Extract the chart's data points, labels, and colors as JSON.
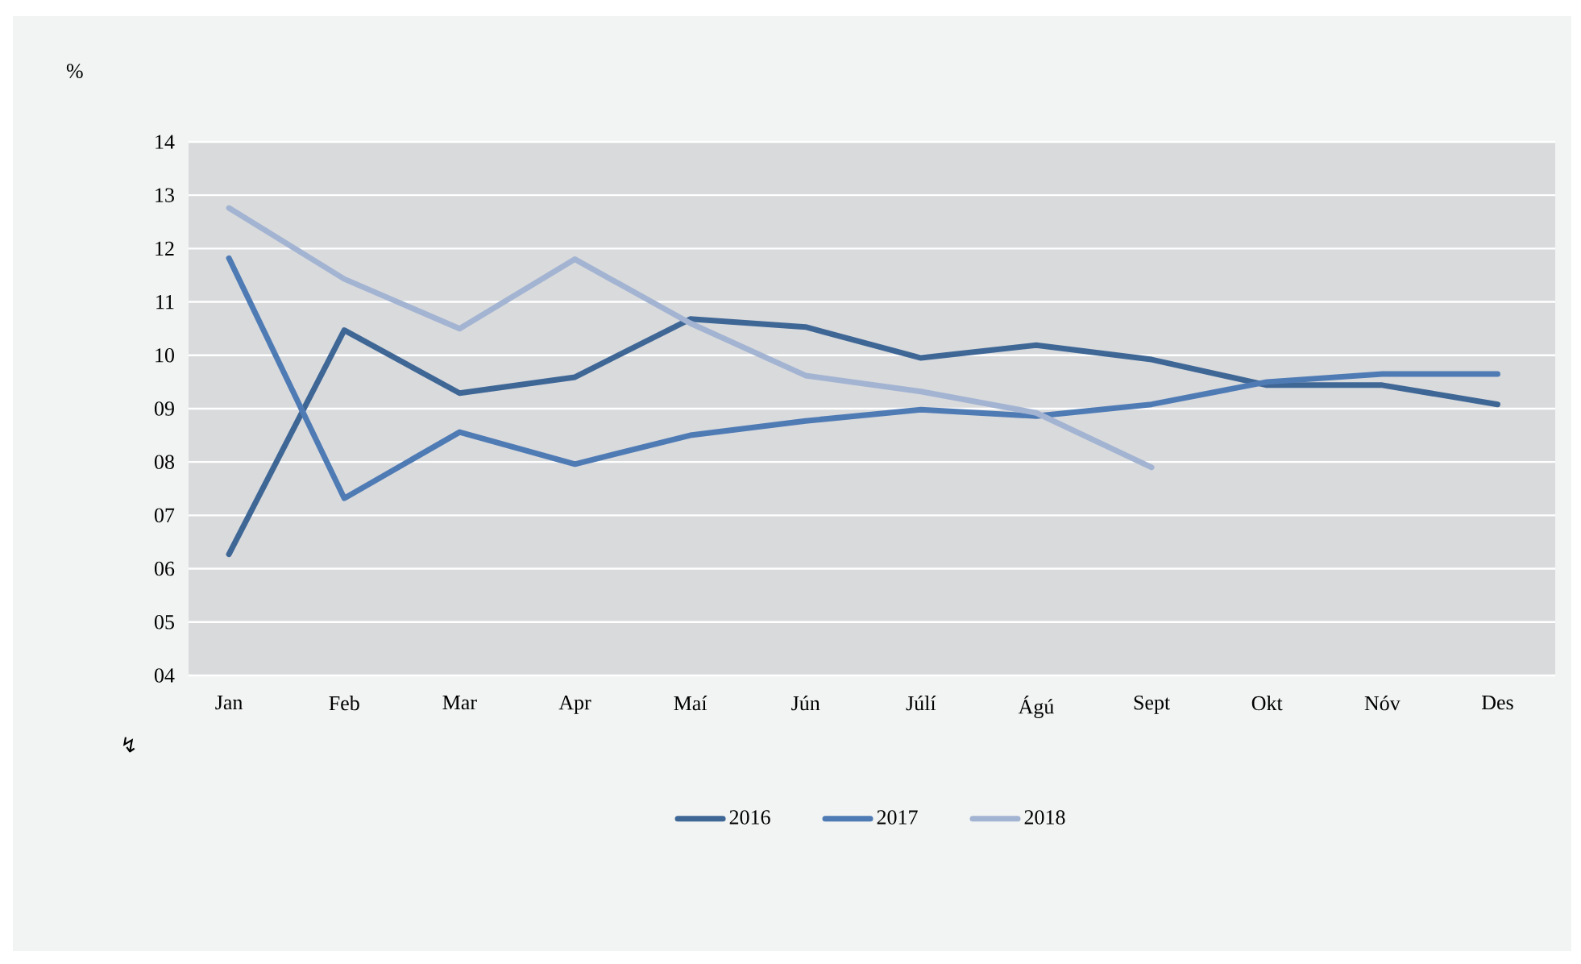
{
  "chart_data": {
    "type": "line",
    "ylabel": "%",
    "annotations": [
      "↯"
    ],
    "categories": [
      "Jan",
      "Feb",
      "Mar",
      "Apr",
      "Maí",
      "Jún",
      "Júlí",
      "Ágú",
      "Sept",
      "Okt",
      "Nóv",
      "Des"
    ],
    "series": [
      {
        "name": "2016",
        "color": "#3f6796",
        "values": [
          6.27,
          10.47,
          9.29,
          9.59,
          10.68,
          10.53,
          9.95,
          10.19,
          9.92,
          9.44,
          9.44,
          9.08
        ]
      },
      {
        "name": "2017",
        "color": "#4f7bb5",
        "values": [
          11.82,
          7.32,
          8.56,
          7.96,
          8.5,
          8.77,
          8.98,
          8.86,
          9.08,
          9.5,
          9.65,
          9.65
        ]
      },
      {
        "name": "2018",
        "color": "#a3b4d2",
        "values": [
          12.76,
          11.43,
          10.5,
          11.8,
          10.6,
          9.62,
          9.32,
          8.92,
          7.9,
          null,
          null,
          null
        ]
      }
    ],
    "ylim": [
      4,
      14
    ],
    "yticks": [
      {
        "value": 4,
        "label": "04"
      },
      {
        "value": 5,
        "label": "05"
      },
      {
        "value": 6,
        "label": "06"
      },
      {
        "value": 7,
        "label": "07"
      },
      {
        "value": 8,
        "label": "08"
      },
      {
        "value": 9,
        "label": "09"
      },
      10,
      11,
      12,
      13,
      14
    ],
    "grid": "y",
    "legend": "bottom",
    "marker": "none",
    "line_style": "solid"
  }
}
